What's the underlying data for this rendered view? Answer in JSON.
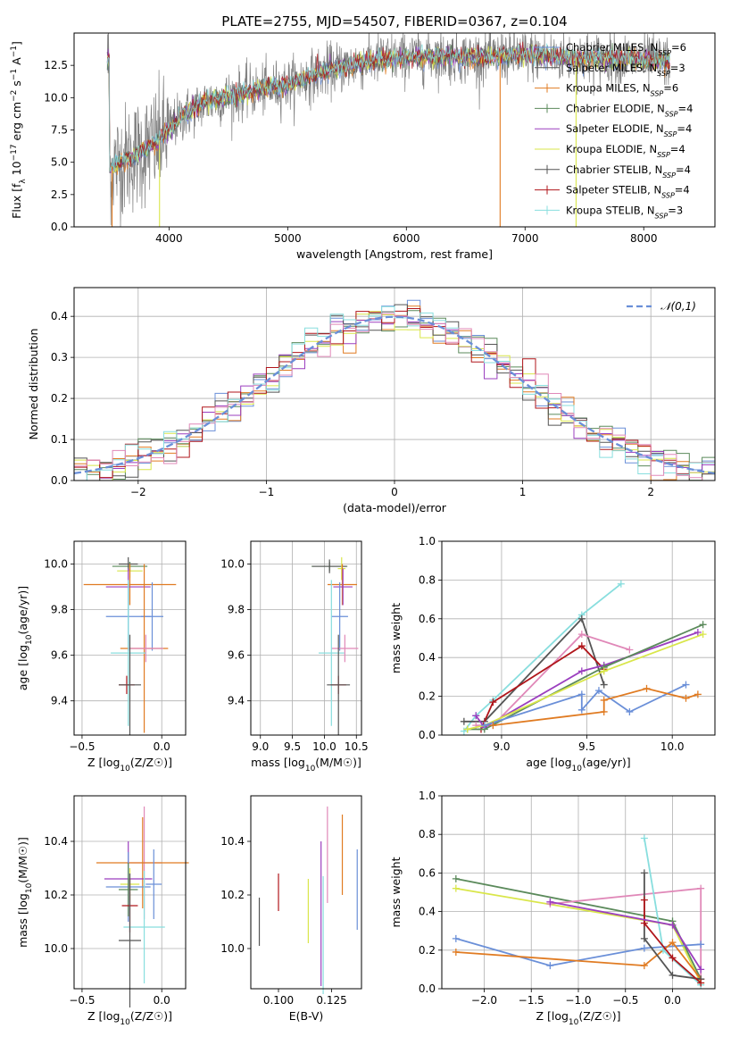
{
  "figure_title": "PLATE=2755, MJD=54507, FIBERID=0367, z=0.104",
  "colors": {
    "c1": "#6a8fd8",
    "c2": "#e07b22",
    "c3": "#5b8a5b",
    "c4": "#9b3fbf",
    "c5": "#d9e64a",
    "c6": "#555555",
    "c7": "#b0161b",
    "c8": "#88dede",
    "c9": "#e088b8",
    "spectrum": "#808080",
    "grid": "#b0b0b0"
  },
  "chart_data": [
    {
      "id": "spectrum",
      "type": "line",
      "xlabel": "wavelength [Angstrom, rest frame]",
      "ylabel": "Flux [f_λ 10^-17 erg cm^-2 s^-1 A^-1]",
      "xlim": [
        3200,
        8600
      ],
      "ylim": [
        0,
        15
      ],
      "xticks": [
        4000,
        5000,
        6000,
        7000,
        8000
      ],
      "yticks": [
        0.0,
        2.5,
        5.0,
        7.5,
        10.0,
        12.5
      ],
      "grid": false,
      "legend_position": "top-right",
      "x_range_observed": [
        3480,
        8220
      ],
      "continuum_points": [
        [
          3500,
          4.6
        ],
        [
          3700,
          5.5
        ],
        [
          3900,
          6.5
        ],
        [
          4100,
          8.5
        ],
        [
          4300,
          9.6
        ],
        [
          4600,
          10.3
        ],
        [
          5000,
          11.0
        ],
        [
          5400,
          12.3
        ],
        [
          5800,
          13.0
        ],
        [
          6200,
          13.2
        ],
        [
          6600,
          13.1
        ],
        [
          7000,
          13.3
        ],
        [
          7400,
          13.1
        ],
        [
          7800,
          13.0
        ],
        [
          8200,
          12.8
        ]
      ],
      "spikes": [
        {
          "x": 3520,
          "ymax": 0
        },
        {
          "x": 3920,
          "ymax": 0
        },
        {
          "x": 6790,
          "ymax": 0
        },
        {
          "x": 7430,
          "ymax": 0
        }
      ],
      "series": [
        {
          "name": "Chabrier MILES, N_SSP=6",
          "color_key": "c1"
        },
        {
          "name": "Salpeter MILES, N_SSP=3",
          "color_key": "c6"
        },
        {
          "name": "Kroupa MILES, N_SSP=6",
          "color_key": "c2"
        },
        {
          "name": "Chabrier ELODIE, N_SSP=4",
          "color_key": "c3"
        },
        {
          "name": "Salpeter ELODIE, N_SSP=4",
          "color_key": "c4"
        },
        {
          "name": "Kroupa ELODIE, N_SSP=4",
          "color_key": "c5"
        },
        {
          "name": "Chabrier STELIB, N_SSP=4",
          "color_key": "c6"
        },
        {
          "name": "Salpeter STELIB, N_SSP=4",
          "color_key": "c7"
        },
        {
          "name": "Kroupa STELIB, N_SSP=3",
          "color_key": "c8"
        }
      ]
    },
    {
      "id": "hist",
      "type": "histogram",
      "xlabel": "(data-model)/error",
      "ylabel": "Normed distribution",
      "xlim": [
        -2.5,
        2.5
      ],
      "ylim": [
        0,
        0.47
      ],
      "xticks": [
        -2,
        -1,
        0,
        1,
        2
      ],
      "yticks": [
        0.0,
        0.1,
        0.2,
        0.3,
        0.4
      ],
      "grid": true,
      "bin_width": 0.1,
      "legend_position": "top-right",
      "reference": {
        "label": "𝒩(0,1)",
        "color_key": "c1"
      },
      "colors": [
        "c1",
        "c2",
        "c3",
        "c4",
        "c5",
        "c6",
        "c7",
        "c8",
        "c9"
      ]
    },
    {
      "id": "age_vs_z",
      "type": "errorbar",
      "xlabel": "Z [log10(Z/Z☉)]",
      "ylabel": "age  [log10(age/yr)]",
      "xlim": [
        -0.55,
        0.15
      ],
      "ylim": [
        9.25,
        10.1
      ],
      "xticks": [
        -0.5,
        0.0
      ],
      "yticks": [
        9.4,
        9.6,
        9.8,
        10.0
      ],
      "grid": true,
      "points": [
        {
          "x": -0.2,
          "y": 9.99,
          "xerr": 0.11,
          "yerr": 0.02,
          "c": "c3"
        },
        {
          "x": -0.21,
          "y": 10.0,
          "xerr": 0.06,
          "yerr": 0.03,
          "c": "c6"
        },
        {
          "x": -0.2,
          "y": 9.97,
          "xerr": 0.08,
          "yerr": 0.03,
          "c": "c5"
        },
        {
          "x": -0.2,
          "y": 9.91,
          "xerr": 0.29,
          "yerr": 0.09,
          "c": "c2"
        },
        {
          "x": -0.21,
          "y": 9.9,
          "xerr": 0.14,
          "yerr": 0.08,
          "c": "c4"
        },
        {
          "x": -0.21,
          "y": 9.77,
          "xerr": 0.14,
          "yerr": 0.15,
          "c": "c1"
        },
        {
          "x": -0.06,
          "y": 9.77,
          "xerr": 0.07,
          "yerr": 0.15,
          "c": "c1"
        },
        {
          "x": -0.11,
          "y": 9.63,
          "xerr": 0.15,
          "yerr": 0.37,
          "c": "c2"
        },
        {
          "x": -0.1,
          "y": 9.63,
          "xerr": 0.11,
          "yerr": 0.06,
          "c": "c9"
        },
        {
          "x": -0.21,
          "y": 9.61,
          "xerr": 0.11,
          "yerr": 0.32,
          "c": "c8"
        },
        {
          "x": -0.22,
          "y": 9.47,
          "xerr": 0.05,
          "yerr": 0.04,
          "c": "c7"
        },
        {
          "x": -0.2,
          "y": 9.47,
          "xerr": 0.07,
          "yerr": 0.22,
          "c": "c6"
        }
      ]
    },
    {
      "id": "age_vs_mass",
      "type": "errorbar",
      "xlabel": "mass [log10(M/M☉)]",
      "ylabel": "",
      "xlim": [
        8.85,
        10.58
      ],
      "ylim": [
        9.25,
        10.1
      ],
      "xticks": [
        9.0,
        9.5,
        10.0,
        10.5
      ],
      "yticks": [
        9.4,
        9.6,
        9.8,
        10.0
      ],
      "grid": true,
      "points": [
        {
          "x": 10.08,
          "y": 9.99,
          "xerr": 0.28,
          "yerr": 0.02,
          "c": "c3"
        },
        {
          "x": 10.08,
          "y": 9.99,
          "xerr": 0.27,
          "yerr": 0.03,
          "c": "c6"
        },
        {
          "x": 10.27,
          "y": 9.98,
          "xerr": 0.06,
          "yerr": 0.05,
          "c": "c5"
        },
        {
          "x": 10.28,
          "y": 9.91,
          "xerr": 0.23,
          "yerr": 0.09,
          "c": "c2"
        },
        {
          "x": 10.29,
          "y": 9.9,
          "xerr": 0.15,
          "yerr": 0.08,
          "c": "c4"
        },
        {
          "x": 10.24,
          "y": 9.77,
          "xerr": 0.13,
          "yerr": 0.15,
          "c": "c1"
        },
        {
          "x": 10.32,
          "y": 9.63,
          "xerr": 0.21,
          "yerr": 0.06,
          "c": "c9"
        },
        {
          "x": 10.11,
          "y": 9.61,
          "xerr": 0.2,
          "yerr": 0.32,
          "c": "c8"
        },
        {
          "x": 10.22,
          "y": 9.47,
          "xerr": 0.12,
          "yerr": 0.04,
          "c": "c7"
        },
        {
          "x": 10.22,
          "y": 9.47,
          "xerr": 0.18,
          "yerr": 0.22,
          "c": "c6"
        }
      ]
    },
    {
      "id": "weight_vs_age",
      "type": "line",
      "xlabel": "age  [log10(age/yr)]",
      "ylabel": "mass weight",
      "xlim": [
        8.65,
        10.25
      ],
      "ylim": [
        0,
        1
      ],
      "xticks": [
        9.0,
        9.5,
        10.0
      ],
      "yticks": [
        0.0,
        0.2,
        0.4,
        0.6,
        0.8,
        1.0
      ],
      "grid": true,
      "series": [
        {
          "c": "c8",
          "x": [
            8.78,
            8.85,
            8.95,
            9.47,
            9.7
          ],
          "y": [
            0.02,
            0.1,
            0.18,
            0.62,
            0.78
          ]
        },
        {
          "c": "c6",
          "x": [
            8.78,
            8.9,
            9.47,
            9.6
          ],
          "y": [
            0.07,
            0.07,
            0.6,
            0.26
          ]
        },
        {
          "c": "c9",
          "x": [
            8.85,
            8.95,
            9.47,
            9.75
          ],
          "y": [
            0.05,
            0.05,
            0.52,
            0.44
          ]
        },
        {
          "c": "c7",
          "x": [
            8.88,
            8.95,
            9.47,
            9.6
          ],
          "y": [
            0.03,
            0.17,
            0.46,
            0.34
          ]
        },
        {
          "c": "c4",
          "x": [
            8.85,
            8.9,
            9.47,
            9.6,
            10.15
          ],
          "y": [
            0.1,
            0.04,
            0.33,
            0.36,
            0.53
          ]
        },
        {
          "c": "c3",
          "x": [
            8.8,
            8.9,
            9.6,
            10.18
          ],
          "y": [
            0.03,
            0.03,
            0.35,
            0.57
          ]
        },
        {
          "c": "c5",
          "x": [
            8.8,
            8.9,
            9.6,
            10.18
          ],
          "y": [
            0.03,
            0.05,
            0.33,
            0.52
          ]
        },
        {
          "c": "c1",
          "x": [
            8.9,
            9.47,
            9.47,
            9.57,
            9.75,
            10.08
          ],
          "y": [
            0.05,
            0.21,
            0.13,
            0.23,
            0.12,
            0.26
          ]
        },
        {
          "c": "c2",
          "x": [
            8.95,
            9.6,
            9.6,
            9.85,
            10.08,
            10.15
          ],
          "y": [
            0.05,
            0.12,
            0.18,
            0.24,
            0.19,
            0.21
          ]
        }
      ]
    },
    {
      "id": "mass_vs_z",
      "type": "errorbar",
      "xlabel": "Z [log10(Z/Z☉)]",
      "ylabel": "mass [log10(M/M☉)]",
      "xlim": [
        -0.55,
        0.15
      ],
      "ylim": [
        9.85,
        10.57
      ],
      "xticks": [
        -0.5,
        0.0
      ],
      "yticks": [
        10.0,
        10.2,
        10.4
      ],
      "grid": true,
      "points": [
        {
          "x": -0.11,
          "y": 10.32,
          "xerr": 0.11,
          "yerr": 0.21,
          "c": "c9"
        },
        {
          "x": -0.12,
          "y": 10.32,
          "xerr": 0.29,
          "yerr": 0.17,
          "c": "c2"
        },
        {
          "x": -0.21,
          "y": 10.26,
          "xerr": 0.15,
          "yerr": 0.14,
          "c": "c4"
        },
        {
          "x": -0.2,
          "y": 10.24,
          "xerr": 0.06,
          "yerr": 0.06,
          "c": "c5"
        },
        {
          "x": -0.21,
          "y": 10.23,
          "xerr": 0.14,
          "yerr": 0.13,
          "c": "c1"
        },
        {
          "x": -0.21,
          "y": 10.22,
          "xerr": 0.06,
          "yerr": 0.1,
          "c": "c3"
        },
        {
          "x": -0.05,
          "y": 10.24,
          "xerr": 0.05,
          "yerr": 0.13,
          "c": "c1"
        },
        {
          "x": -0.2,
          "y": 10.16,
          "xerr": 0.05,
          "yerr": 0.1,
          "c": "c7"
        },
        {
          "x": -0.11,
          "y": 10.08,
          "xerr": 0.13,
          "yerr": 0.21,
          "c": "c8"
        },
        {
          "x": -0.2,
          "y": 10.03,
          "xerr": 0.07,
          "yerr": 0.25,
          "c": "c6"
        }
      ]
    },
    {
      "id": "mass_vs_ebv",
      "type": "errorbar",
      "xlabel": "E(B-V)",
      "ylabel": "",
      "xlim": [
        0.087,
        0.139
      ],
      "ylim": [
        9.85,
        10.57
      ],
      "xticks": [
        0.1,
        0.125
      ],
      "yticks": [
        10.0,
        10.2,
        10.4
      ],
      "grid": false,
      "points": [
        {
          "x": 0.091,
          "y": 10.1,
          "xerr": 0,
          "yerr": 0.09,
          "c": "c6"
        },
        {
          "x": 0.1,
          "y": 10.21,
          "xerr": 0,
          "yerr": 0.07,
          "c": "c7"
        },
        {
          "x": 0.114,
          "y": 10.14,
          "xerr": 0,
          "yerr": 0.12,
          "c": "c5"
        },
        {
          "x": 0.12,
          "y": 10.13,
          "xerr": 0,
          "yerr": 0.27,
          "c": "c4"
        },
        {
          "x": 0.121,
          "y": 10.05,
          "xerr": 0,
          "yerr": 0.22,
          "c": "c8"
        },
        {
          "x": 0.123,
          "y": 10.35,
          "xerr": 0,
          "yerr": 0.18,
          "c": "c9"
        },
        {
          "x": 0.13,
          "y": 10.35,
          "xerr": 0,
          "yerr": 0.15,
          "c": "c2"
        },
        {
          "x": 0.137,
          "y": 10.22,
          "xerr": 0,
          "yerr": 0.15,
          "c": "c1"
        }
      ]
    },
    {
      "id": "weight_vs_z",
      "type": "line",
      "xlabel": "Z [log10(Z/Z☉)]",
      "ylabel": "mass weight",
      "xlim": [
        -2.45,
        0.45
      ],
      "ylim": [
        0,
        1
      ],
      "xticks": [
        -2.0,
        -1.5,
        -1.0,
        -0.5,
        0.0
      ],
      "yticks": [
        0.0,
        0.2,
        0.4,
        0.6,
        0.8,
        1.0
      ],
      "grid": true,
      "series": [
        {
          "c": "c3",
          "x": [
            -2.3,
            0.0,
            0.3
          ],
          "y": [
            0.57,
            0.35,
            0.05
          ]
        },
        {
          "c": "c5",
          "x": [
            -2.3,
            0.0,
            0.3
          ],
          "y": [
            0.52,
            0.33,
            0.03
          ]
        },
        {
          "c": "c9",
          "x": [
            -1.3,
            0.3,
            0.3
          ],
          "y": [
            0.44,
            0.52,
            0.05
          ]
        },
        {
          "c": "c1",
          "x": [
            -2.3,
            -1.3,
            -0.3,
            0.3
          ],
          "y": [
            0.26,
            0.12,
            0.21,
            0.23
          ]
        },
        {
          "c": "c2",
          "x": [
            -2.3,
            -0.3,
            0.0,
            0.3
          ],
          "y": [
            0.19,
            0.12,
            0.24,
            0.05
          ]
        },
        {
          "c": "c8",
          "x": [
            -0.3,
            -0.1,
            0.3
          ],
          "y": [
            0.78,
            0.2,
            0.02
          ]
        },
        {
          "c": "c6",
          "x": [
            -0.3,
            -0.3,
            0.0,
            0.3
          ],
          "y": [
            0.6,
            0.26,
            0.07,
            0.05
          ]
        },
        {
          "c": "c7",
          "x": [
            -0.3,
            -0.3,
            0.0,
            0.3
          ],
          "y": [
            0.46,
            0.34,
            0.16,
            0.03
          ]
        },
        {
          "c": "c4",
          "x": [
            -1.3,
            0.0,
            0.3
          ],
          "y": [
            0.45,
            0.33,
            0.1
          ]
        }
      ]
    }
  ]
}
